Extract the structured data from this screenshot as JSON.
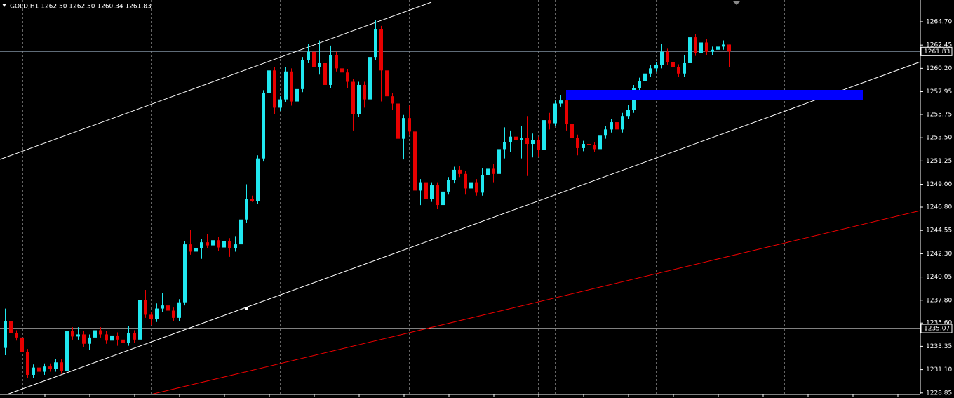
{
  "chart_data": {
    "type": "candlestick",
    "title": "GOLD,H1  1262.50 1262.50 1260.34 1261.83",
    "up_color": "#20e8f0",
    "down_color": "#e80000",
    "ylim": [
      1228.7,
      1266.8
    ],
    "yticks": [
      {
        "value": 1264.7,
        "label": "1264.70"
      },
      1262.45,
      {
        "value": 1260.2,
        "label": "1260.20"
      },
      1257.95,
      1255.75,
      {
        "value": 1253.5,
        "label": "1253.50"
      },
      1251.25,
      {
        "value": 1249,
        "label": "1249.00"
      },
      {
        "value": 1246.8,
        "label": "1246.80"
      },
      1244.55,
      {
        "value": 1242.3,
        "label": "1242.30"
      },
      1240.05,
      {
        "value": 1237.8,
        "label": "1237.80"
      },
      {
        "value": 1235.6,
        "label": "1235.60"
      },
      1233.35,
      {
        "value": 1231.1,
        "label": "1231.10"
      },
      1228.85
    ],
    "horizontal_lines": [
      {
        "value": 1261.83,
        "color": "#7f8fa0"
      },
      {
        "value": 1235.07,
        "color": "#ffffff"
      }
    ],
    "open": [
      1233.2,
      1235.8,
      1234.6,
      1234.2,
      1232.8,
      1230.6,
      1231.3,
      1230.9,
      1231.4,
      1231.2,
      1231.8,
      1231.0,
      1234.8,
      1234.3,
      1234.5,
      1233.6,
      1234.2,
      1234.9,
      1234.5,
      1233.9,
      1234.4,
      1234.0,
      1233.7,
      1234.6,
      1234.0,
      1237.8,
      1236.4,
      1236.0,
      1237.0,
      1237.3,
      1236.8,
      1236.1,
      1237.6,
      1243.2,
      1242.5,
      1242.8,
      1243.4,
      1243.1,
      1243.6,
      1242.9,
      1243.5,
      1242.8,
      1243.2,
      1245.6,
      1247.6,
      1247.4,
      1251.5,
      1257.8,
      1260.0,
      1256.4,
      1257.2,
      1259.9,
      1257.0,
      1258.2,
      1261.0,
      1261.8,
      1260.3,
      1260.7,
      1258.6,
      1261.5,
      1260.2,
      1259.8,
      1258.9,
      1255.8,
      1258.6,
      1257.2,
      1261.3,
      1264.0,
      1260.0,
      1257.5,
      1256.8,
      1253.4,
      1255.4,
      1254.1,
      1248.4,
      1249.2,
      1247.6,
      1248.9,
      1247.0,
      1248.3,
      1249.4,
      1250.4,
      1250.0,
      1248.6,
      1249.2,
      1248.2,
      1249.9,
      1250.5,
      1250.0,
      1252.4,
      1253.1,
      1253.6,
      1253.3,
      1253.5,
      1252.9,
      1253.3,
      1252.3,
      1255.2,
      1254.9,
      1256.8,
      1257.1,
      1254.8,
      1253.5,
      1252.5,
      1252.9,
      1252.8,
      1252.4,
      1253.7,
      1254.3,
      1255.0,
      1254.3,
      1255.6,
      1256.2,
      1258.3,
      1259.0,
      1259.7,
      1260.2,
      1260.5,
      1261.8,
      1260.8,
      1260.3,
      1259.7,
      1260.7,
      1263.2,
      1261.7,
      1262.7,
      1261.8,
      1262.0,
      1262.3,
      1262.5
    ],
    "high": [
      1237.0,
      1236.1,
      1234.9,
      1234.5,
      1233.1,
      1231.6,
      1231.6,
      1231.7,
      1231.7,
      1232.1,
      1232.1,
      1235.1,
      1235.2,
      1235.2,
      1234.8,
      1234.5,
      1235.2,
      1235.2,
      1234.8,
      1234.7,
      1234.7,
      1234.3,
      1235.3,
      1234.9,
      1238.6,
      1238.8,
      1236.7,
      1237.5,
      1238.5,
      1237.6,
      1237.1,
      1237.9,
      1243.5,
      1244.6,
      1244.8,
      1243.7,
      1244.2,
      1243.9,
      1243.9,
      1244.2,
      1243.8,
      1244.0,
      1245.9,
      1249.0,
      1247.9,
      1251.8,
      1258.1,
      1260.4,
      1260.3,
      1257.5,
      1260.3,
      1260.2,
      1259.2,
      1261.3,
      1262.6,
      1262.1,
      1262.9,
      1261.0,
      1262.4,
      1261.8,
      1260.5,
      1260.1,
      1259.2,
      1258.9,
      1258.9,
      1262.6,
      1264.9,
      1264.3,
      1260.3,
      1257.8,
      1257.1,
      1255.7,
      1256.6,
      1254.4,
      1249.5,
      1249.5,
      1249.2,
      1249.2,
      1248.6,
      1249.7,
      1250.7,
      1250.8,
      1250.3,
      1249.5,
      1249.5,
      1250.6,
      1251.8,
      1251.0,
      1252.9,
      1254.5,
      1254.2,
      1255.0,
      1254.6,
      1255.6,
      1253.9,
      1253.6,
      1255.5,
      1255.9,
      1257.1,
      1257.6,
      1257.4,
      1255.1,
      1253.8,
      1253.2,
      1253.4,
      1253.1,
      1254.0,
      1254.6,
      1255.3,
      1255.3,
      1255.9,
      1256.7,
      1258.6,
      1259.3,
      1260.0,
      1260.5,
      1260.8,
      1262.6,
      1262.1,
      1261.6,
      1260.6,
      1261.5,
      1263.5,
      1263.5,
      1263.6,
      1263.0,
      1262.3,
      1262.6,
      1262.9,
      1262.5
    ],
    "low": [
      1232.5,
      1234.3,
      1233.9,
      1232.5,
      1230.3,
      1230.3,
      1230.6,
      1230.6,
      1230.9,
      1230.9,
      1230.7,
      1230.7,
      1234.0,
      1234.0,
      1233.3,
      1233.0,
      1233.9,
      1234.2,
      1233.6,
      1233.6,
      1233.4,
      1233.4,
      1233.4,
      1233.7,
      1233.7,
      1236.1,
      1235.4,
      1235.7,
      1236.7,
      1236.5,
      1235.8,
      1235.8,
      1237.3,
      1242.2,
      1241.3,
      1241.8,
      1242.8,
      1242.8,
      1242.6,
      1241.0,
      1242.0,
      1242.5,
      1242.9,
      1245.3,
      1247.3,
      1247.1,
      1251.2,
      1255.4,
      1255.8,
      1256.1,
      1256.9,
      1256.6,
      1256.7,
      1257.9,
      1260.7,
      1260.0,
      1259.6,
      1258.3,
      1258.3,
      1259.9,
      1259.5,
      1258.3,
      1254.2,
      1255.5,
      1256.4,
      1256.9,
      1261.0,
      1257.0,
      1256.5,
      1256.2,
      1250.9,
      1251.4,
      1253.8,
      1247.5,
      1247.0,
      1246.9,
      1247.3,
      1246.6,
      1246.7,
      1248.0,
      1249.1,
      1249.7,
      1248.0,
      1248.0,
      1247.9,
      1247.9,
      1249.6,
      1249.2,
      1249.7,
      1251.5,
      1252.1,
      1252.0,
      1251.5,
      1249.8,
      1251.6,
      1251.7,
      1252.0,
      1254.3,
      1254.6,
      1256.5,
      1254.2,
      1252.9,
      1251.8,
      1252.2,
      1252.3,
      1252.1,
      1252.1,
      1253.4,
      1254.0,
      1254.0,
      1254.0,
      1255.3,
      1255.9,
      1257.2,
      1258.7,
      1259.4,
      1259.9,
      1260.2,
      1260.5,
      1259.6,
      1259.4,
      1259.4,
      1260.4,
      1261.4,
      1261.4,
      1261.5,
      1261.5,
      1261.7,
      1262.0,
      1260.34
    ],
    "close": [
      1235.8,
      1234.6,
      1234.2,
      1232.8,
      1230.6,
      1231.3,
      1230.9,
      1231.4,
      1231.2,
      1231.8,
      1231.0,
      1234.8,
      1234.3,
      1234.5,
      1233.6,
      1234.2,
      1234.9,
      1234.5,
      1233.9,
      1234.4,
      1234.0,
      1233.7,
      1234.6,
      1234.0,
      1237.8,
      1236.4,
      1236.0,
      1237.0,
      1237.3,
      1236.8,
      1236.1,
      1237.6,
      1243.2,
      1242.5,
      1242.8,
      1243.4,
      1243.1,
      1243.6,
      1242.9,
      1243.5,
      1242.8,
      1243.2,
      1245.6,
      1247.6,
      1247.4,
      1251.5,
      1257.8,
      1260.0,
      1256.4,
      1257.2,
      1259.9,
      1257.0,
      1258.2,
      1261.0,
      1261.8,
      1260.3,
      1260.7,
      1258.6,
      1261.5,
      1260.2,
      1259.8,
      1258.9,
      1255.8,
      1258.6,
      1257.2,
      1261.3,
      1264.0,
      1260.0,
      1257.5,
      1256.8,
      1253.4,
      1255.4,
      1254.1,
      1248.4,
      1249.2,
      1247.6,
      1248.9,
      1247.0,
      1248.3,
      1249.4,
      1250.4,
      1250.0,
      1248.6,
      1249.2,
      1248.2,
      1249.9,
      1250.5,
      1250.0,
      1252.4,
      1253.1,
      1253.6,
      1253.3,
      1253.5,
      1252.9,
      1253.3,
      1252.3,
      1255.2,
      1254.9,
      1256.8,
      1257.1,
      1254.8,
      1253.5,
      1252.5,
      1252.9,
      1252.8,
      1252.4,
      1253.7,
      1254.3,
      1255.0,
      1254.3,
      1255.6,
      1256.2,
      1258.3,
      1259.0,
      1259.7,
      1260.2,
      1260.5,
      1261.8,
      1260.8,
      1260.3,
      1259.7,
      1260.7,
      1263.2,
      1261.7,
      1262.7,
      1261.8,
      1262.0,
      1262.3,
      1262.5,
      1261.83
    ]
  }
}
